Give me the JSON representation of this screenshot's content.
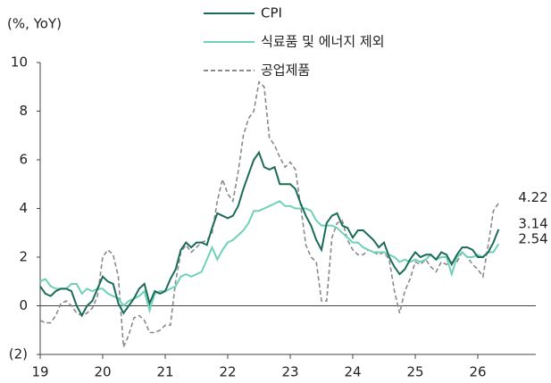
{
  "chart_data": {
    "type": "line",
    "y_label": "(%, YoY)",
    "categories": [
      "19",
      null,
      null,
      null,
      null,
      null,
      null,
      null,
      null,
      null,
      null,
      null,
      "20",
      null,
      null,
      null,
      null,
      null,
      null,
      null,
      null,
      null,
      null,
      null,
      "21",
      null,
      null,
      null,
      null,
      null,
      null,
      null,
      null,
      null,
      null,
      null,
      "22",
      null,
      null,
      null,
      null,
      null,
      null,
      null,
      null,
      null,
      null,
      null,
      "23",
      null,
      null,
      null,
      null,
      null,
      null,
      null,
      null,
      null,
      null,
      null,
      "24",
      null,
      null,
      null,
      null,
      null,
      null,
      null,
      null,
      null,
      null,
      null,
      "25",
      null,
      null,
      null,
      null,
      null,
      null,
      null,
      null,
      null,
      null,
      null,
      "26",
      null,
      null,
      null,
      null
    ],
    "series": [
      {
        "name": "CPI",
        "color": "#1b6b5a",
        "dash": false,
        "values": [
          0.8,
          0.5,
          0.4,
          0.6,
          0.7,
          0.7,
          0.6,
          0.0,
          -0.4,
          0.0,
          0.2,
          0.7,
          1.2,
          1.0,
          0.9,
          0.1,
          -0.3,
          0.0,
          0.3,
          0.7,
          0.9,
          0.1,
          0.6,
          0.5,
          0.6,
          1.1,
          1.5,
          2.3,
          2.6,
          2.4,
          2.6,
          2.6,
          2.5,
          3.2,
          3.8,
          3.7,
          3.6,
          3.7,
          4.1,
          4.8,
          5.4,
          6.0,
          6.3,
          5.7,
          5.6,
          5.7,
          5.0,
          5.0,
          5.0,
          4.8,
          4.2,
          3.7,
          3.3,
          2.7,
          2.3,
          3.4,
          3.7,
          3.8,
          3.3,
          3.2,
          2.8,
          3.1,
          3.1,
          2.9,
          2.7,
          2.4,
          2.6,
          2.0,
          1.6,
          1.3,
          1.5,
          1.9,
          2.2,
          2.0,
          2.1,
          2.1,
          1.9,
          2.2,
          2.1,
          1.7,
          2.1,
          2.4,
          2.4,
          2.3,
          2.0,
          2.0,
          2.2,
          2.6,
          3.14
        ]
      },
      {
        "name": "식료품 및 에너지 제외",
        "color": "#6fd1b8",
        "dash": false,
        "values": [
          1.0,
          1.1,
          0.8,
          0.7,
          0.7,
          0.7,
          0.9,
          0.9,
          0.5,
          0.7,
          0.6,
          0.7,
          0.7,
          0.5,
          0.4,
          0.3,
          0.0,
          0.2,
          0.3,
          0.4,
          0.6,
          -0.2,
          0.5,
          0.6,
          0.6,
          0.7,
          0.8,
          1.2,
          1.3,
          1.2,
          1.3,
          1.4,
          1.9,
          2.4,
          1.9,
          2.3,
          2.6,
          2.7,
          2.9,
          3.1,
          3.4,
          3.9,
          3.9,
          4.0,
          4.1,
          4.2,
          4.3,
          4.1,
          4.1,
          4.0,
          4.0,
          4.0,
          3.9,
          3.5,
          3.3,
          3.3,
          3.3,
          3.2,
          3.0,
          2.8,
          2.6,
          2.6,
          2.4,
          2.3,
          2.2,
          2.2,
          2.2,
          2.1,
          2.0,
          1.8,
          1.9,
          1.8,
          1.9,
          1.8,
          1.9,
          2.1,
          1.9,
          2.0,
          2.0,
          1.3,
          2.0,
          2.2,
          2.0,
          2.0,
          2.1,
          2.0,
          2.2,
          2.2,
          2.54
        ]
      },
      {
        "name": "공업제품",
        "color": "#8a8a8a",
        "dash": true,
        "values": [
          -0.6,
          -0.7,
          -0.7,
          -0.4,
          0.1,
          0.2,
          0.0,
          -0.3,
          -0.4,
          -0.3,
          -0.1,
          0.4,
          2.0,
          2.3,
          2.1,
          1.2,
          -1.7,
          -1.2,
          -0.5,
          -0.4,
          -0.6,
          -1.1,
          -1.1,
          -1.0,
          -0.8,
          -0.8,
          1.0,
          2.2,
          2.5,
          2.2,
          2.4,
          2.6,
          2.7,
          3.0,
          4.3,
          5.2,
          4.6,
          4.3,
          5.5,
          7.0,
          7.7,
          8.0,
          9.2,
          9.0,
          6.9,
          6.6,
          6.1,
          5.7,
          5.9,
          5.6,
          4.1,
          2.5,
          2.0,
          1.8,
          0.2,
          0.2,
          2.8,
          3.4,
          3.5,
          2.7,
          2.3,
          2.1,
          2.1,
          2.3,
          2.2,
          2.1,
          2.2,
          1.9,
          0.6,
          -0.3,
          0.6,
          1.1,
          1.8,
          1.7,
          1.9,
          1.6,
          1.4,
          1.8,
          1.7,
          1.8,
          1.8,
          2.2,
          2.0,
          1.7,
          1.5,
          1.2,
          2.5,
          3.9,
          4.22
        ]
      }
    ],
    "ylim": [
      -2,
      10
    ],
    "yticks": [
      {
        "value": -2,
        "label": "(2)"
      },
      0,
      2,
      4,
      6,
      8,
      10
    ],
    "legend": "top"
  }
}
